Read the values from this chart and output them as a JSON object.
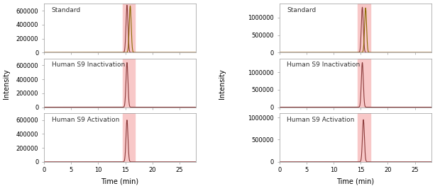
{
  "left_panels": [
    {
      "label": "Standard",
      "peak_x": 15.3,
      "peak_x2": 15.9,
      "peak_height": 680000,
      "peak_height2": 670000,
      "ylim": [
        0,
        700000
      ],
      "yticks": [
        0,
        200000,
        400000,
        600000
      ]
    },
    {
      "label": "Human S9 Inactivation",
      "peak_x": 15.3,
      "peak_x2": null,
      "peak_height": 640000,
      "peak_height2": null,
      "ylim": [
        0,
        700000
      ],
      "yticks": [
        0,
        200000,
        400000,
        600000
      ]
    },
    {
      "label": "Human S9 Activation",
      "peak_x": 15.3,
      "peak_x2": null,
      "peak_height": 600000,
      "peak_height2": null,
      "ylim": [
        0,
        700000
      ],
      "yticks": [
        0,
        200000,
        400000,
        600000
      ]
    }
  ],
  "right_panels": [
    {
      "label": "Standard",
      "peak_x": 15.3,
      "peak_x2": 15.9,
      "peak_height": 1300000,
      "peak_height2": 1280000,
      "ylim": [
        0,
        1400000
      ],
      "yticks": [
        0,
        500000,
        1000000
      ]
    },
    {
      "label": "Human S9 Inactivation",
      "peak_x": 15.3,
      "peak_x2": null,
      "peak_height": 1280000,
      "peak_height2": null,
      "ylim": [
        0,
        1400000
      ],
      "yticks": [
        0,
        500000,
        1000000
      ]
    },
    {
      "label": "Human S9 Activation",
      "peak_x": 15.5,
      "peak_x2": null,
      "peak_height": 950000,
      "peak_height2": null,
      "ylim": [
        0,
        1100000
      ],
      "yticks": [
        0,
        500000,
        1000000
      ]
    }
  ],
  "xlim": [
    0,
    28
  ],
  "xticks": [
    0,
    5,
    10,
    15,
    20,
    25
  ],
  "xlabel": "Time (min)",
  "ylabel": "Intensity",
  "highlight_xmin": 14.5,
  "highlight_xmax": 16.8,
  "highlight_color": "#f8c8c8",
  "peak_color_main": "#8b3a3a",
  "peak_color_second": "#8b6a00",
  "bg_color": "#ffffff",
  "spine_color": "#999999",
  "label_fontsize": 6.5,
  "tick_fontsize": 6,
  "axis_label_fontsize": 7
}
